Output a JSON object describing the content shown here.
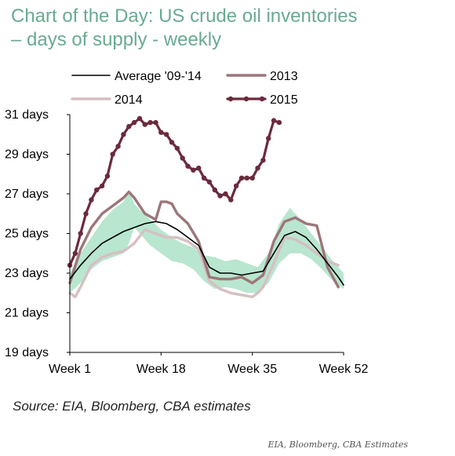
{
  "title_line1": "Chart of the Day: US crude oil inventories",
  "title_line2": "– days of supply - weekly",
  "source": "Source: EIA, Bloomberg, CBA estimates",
  "credit": "EIA, Bloomberg, CBA Estimates",
  "colors": {
    "title": "#6aaa91",
    "average": "#000000",
    "y2013": "#9c7679",
    "y2014": "#d6bfc1",
    "y2015": "#6b2a3d",
    "band": "#b9e6cf"
  },
  "chart_data": {
    "type": "line",
    "xlabel": "",
    "ylabel": "",
    "xlim": [
      1,
      52
    ],
    "ylim": [
      19,
      31
    ],
    "x_ticks": [
      {
        "label": "Week 1",
        "value": 1
      },
      {
        "label": "Week 18",
        "value": 18
      },
      {
        "label": "Week 35",
        "value": 35
      },
      {
        "label": "Week 52",
        "value": 52
      }
    ],
    "y_ticks": [
      {
        "label": "31 days",
        "value": 31
      },
      {
        "label": "29 days",
        "value": 29
      },
      {
        "label": "27 days",
        "value": 27
      },
      {
        "label": "25 days",
        "value": 25
      },
      {
        "label": "23 days",
        "value": 23
      },
      {
        "label": "21 days",
        "value": 21
      },
      {
        "label": "19 days",
        "value": 19
      }
    ],
    "band": {
      "x": [
        1,
        3,
        5,
        7,
        9,
        11,
        12,
        13,
        14,
        16,
        18,
        20,
        22,
        24,
        26,
        28,
        30,
        32,
        34,
        36,
        38,
        40,
        42,
        44,
        46,
        48,
        50,
        52
      ],
      "low": [
        22.0,
        22.5,
        23.2,
        23.6,
        23.8,
        24.0,
        24.5,
        25.3,
        25.0,
        24.4,
        24.0,
        23.6,
        23.5,
        23.2,
        22.6,
        22.2,
        22.3,
        22.2,
        22.0,
        22.0,
        22.5,
        23.5,
        24.0,
        24.0,
        23.7,
        23.2,
        22.6,
        22.2
      ],
      "high": [
        23.0,
        24.0,
        24.8,
        25.6,
        26.2,
        26.6,
        27.2,
        26.5,
        26.2,
        25.7,
        25.2,
        24.8,
        24.5,
        24.3,
        23.9,
        23.8,
        23.6,
        23.7,
        23.5,
        23.3,
        24.0,
        25.5,
        26.3,
        25.7,
        25.0,
        24.3,
        23.6,
        23.0
      ]
    },
    "series": [
      {
        "name": "Average '09-'14",
        "style": "line",
        "x": [
          1,
          3,
          5,
          7,
          9,
          11,
          13,
          15,
          17,
          19,
          21,
          23,
          25,
          27,
          29,
          31,
          33,
          35,
          37,
          39,
          41,
          43,
          45,
          47,
          49,
          51,
          52
        ],
        "values": [
          22.7,
          23.4,
          24.0,
          24.5,
          24.8,
          25.1,
          25.3,
          25.5,
          25.6,
          25.5,
          25.2,
          24.8,
          24.4,
          23.3,
          23.0,
          23.0,
          22.9,
          23.0,
          23.1,
          24.0,
          24.9,
          25.1,
          24.8,
          24.2,
          23.5,
          22.8,
          22.4
        ]
      },
      {
        "name": "2013",
        "style": "line",
        "x": [
          1,
          3,
          5,
          7,
          9,
          11,
          12,
          13,
          15,
          17,
          18,
          19,
          20,
          21,
          23,
          25,
          27,
          29,
          31,
          33,
          35,
          37,
          39,
          41,
          43,
          45,
          47,
          49,
          51
        ],
        "values": [
          22.5,
          24.2,
          25.3,
          26.0,
          26.4,
          26.8,
          27.1,
          26.8,
          26.0,
          25.7,
          26.6,
          26.6,
          26.5,
          26.0,
          25.5,
          24.6,
          22.8,
          22.7,
          22.7,
          22.8,
          22.5,
          22.9,
          24.6,
          25.6,
          25.8,
          25.5,
          25.4,
          23.3,
          22.3
        ]
      },
      {
        "name": "2014",
        "style": "line",
        "x": [
          1,
          2,
          3,
          5,
          7,
          9,
          11,
          13,
          15,
          17,
          19,
          21,
          23,
          25,
          27,
          29,
          31,
          33,
          35,
          36,
          37,
          39,
          41,
          43,
          45,
          47,
          49,
          51
        ],
        "values": [
          22.0,
          21.8,
          22.3,
          23.4,
          23.8,
          24.0,
          24.1,
          24.5,
          25.2,
          25.0,
          24.8,
          24.8,
          24.6,
          24.2,
          22.6,
          22.2,
          22.0,
          21.9,
          21.8,
          22.0,
          22.3,
          23.5,
          24.8,
          24.7,
          24.4,
          24.0,
          23.6,
          23.4
        ]
      },
      {
        "name": "2015",
        "style": "line-markers",
        "x": [
          1,
          2,
          3,
          4,
          5,
          6,
          7,
          8,
          9,
          10,
          11,
          12,
          13,
          14,
          15,
          16,
          17,
          18,
          19,
          20,
          21,
          22,
          23,
          24,
          25,
          26,
          27,
          28,
          29,
          30,
          31,
          32,
          33,
          34,
          35,
          36,
          37,
          38,
          39,
          40
        ],
        "values": [
          23.4,
          24.0,
          25.0,
          26.0,
          26.7,
          27.2,
          27.4,
          27.9,
          29.0,
          29.4,
          30.0,
          30.4,
          30.6,
          30.8,
          30.5,
          30.6,
          30.6,
          30.1,
          30.0,
          29.6,
          29.3,
          28.8,
          28.4,
          28.2,
          28.3,
          27.8,
          27.6,
          27.2,
          26.9,
          27.0,
          26.7,
          27.4,
          27.8,
          27.8,
          27.8,
          28.3,
          28.7,
          29.8,
          30.7,
          30.6
        ]
      }
    ],
    "legend": {
      "position": "top",
      "entries": [
        {
          "label": "Average '09-'14",
          "series": "Average '09-'14"
        },
        {
          "label": "2013",
          "series": "2013"
        },
        {
          "label": "2014",
          "series": "2014"
        },
        {
          "label": "2015",
          "series": "2015"
        }
      ]
    },
    "grid": false
  }
}
